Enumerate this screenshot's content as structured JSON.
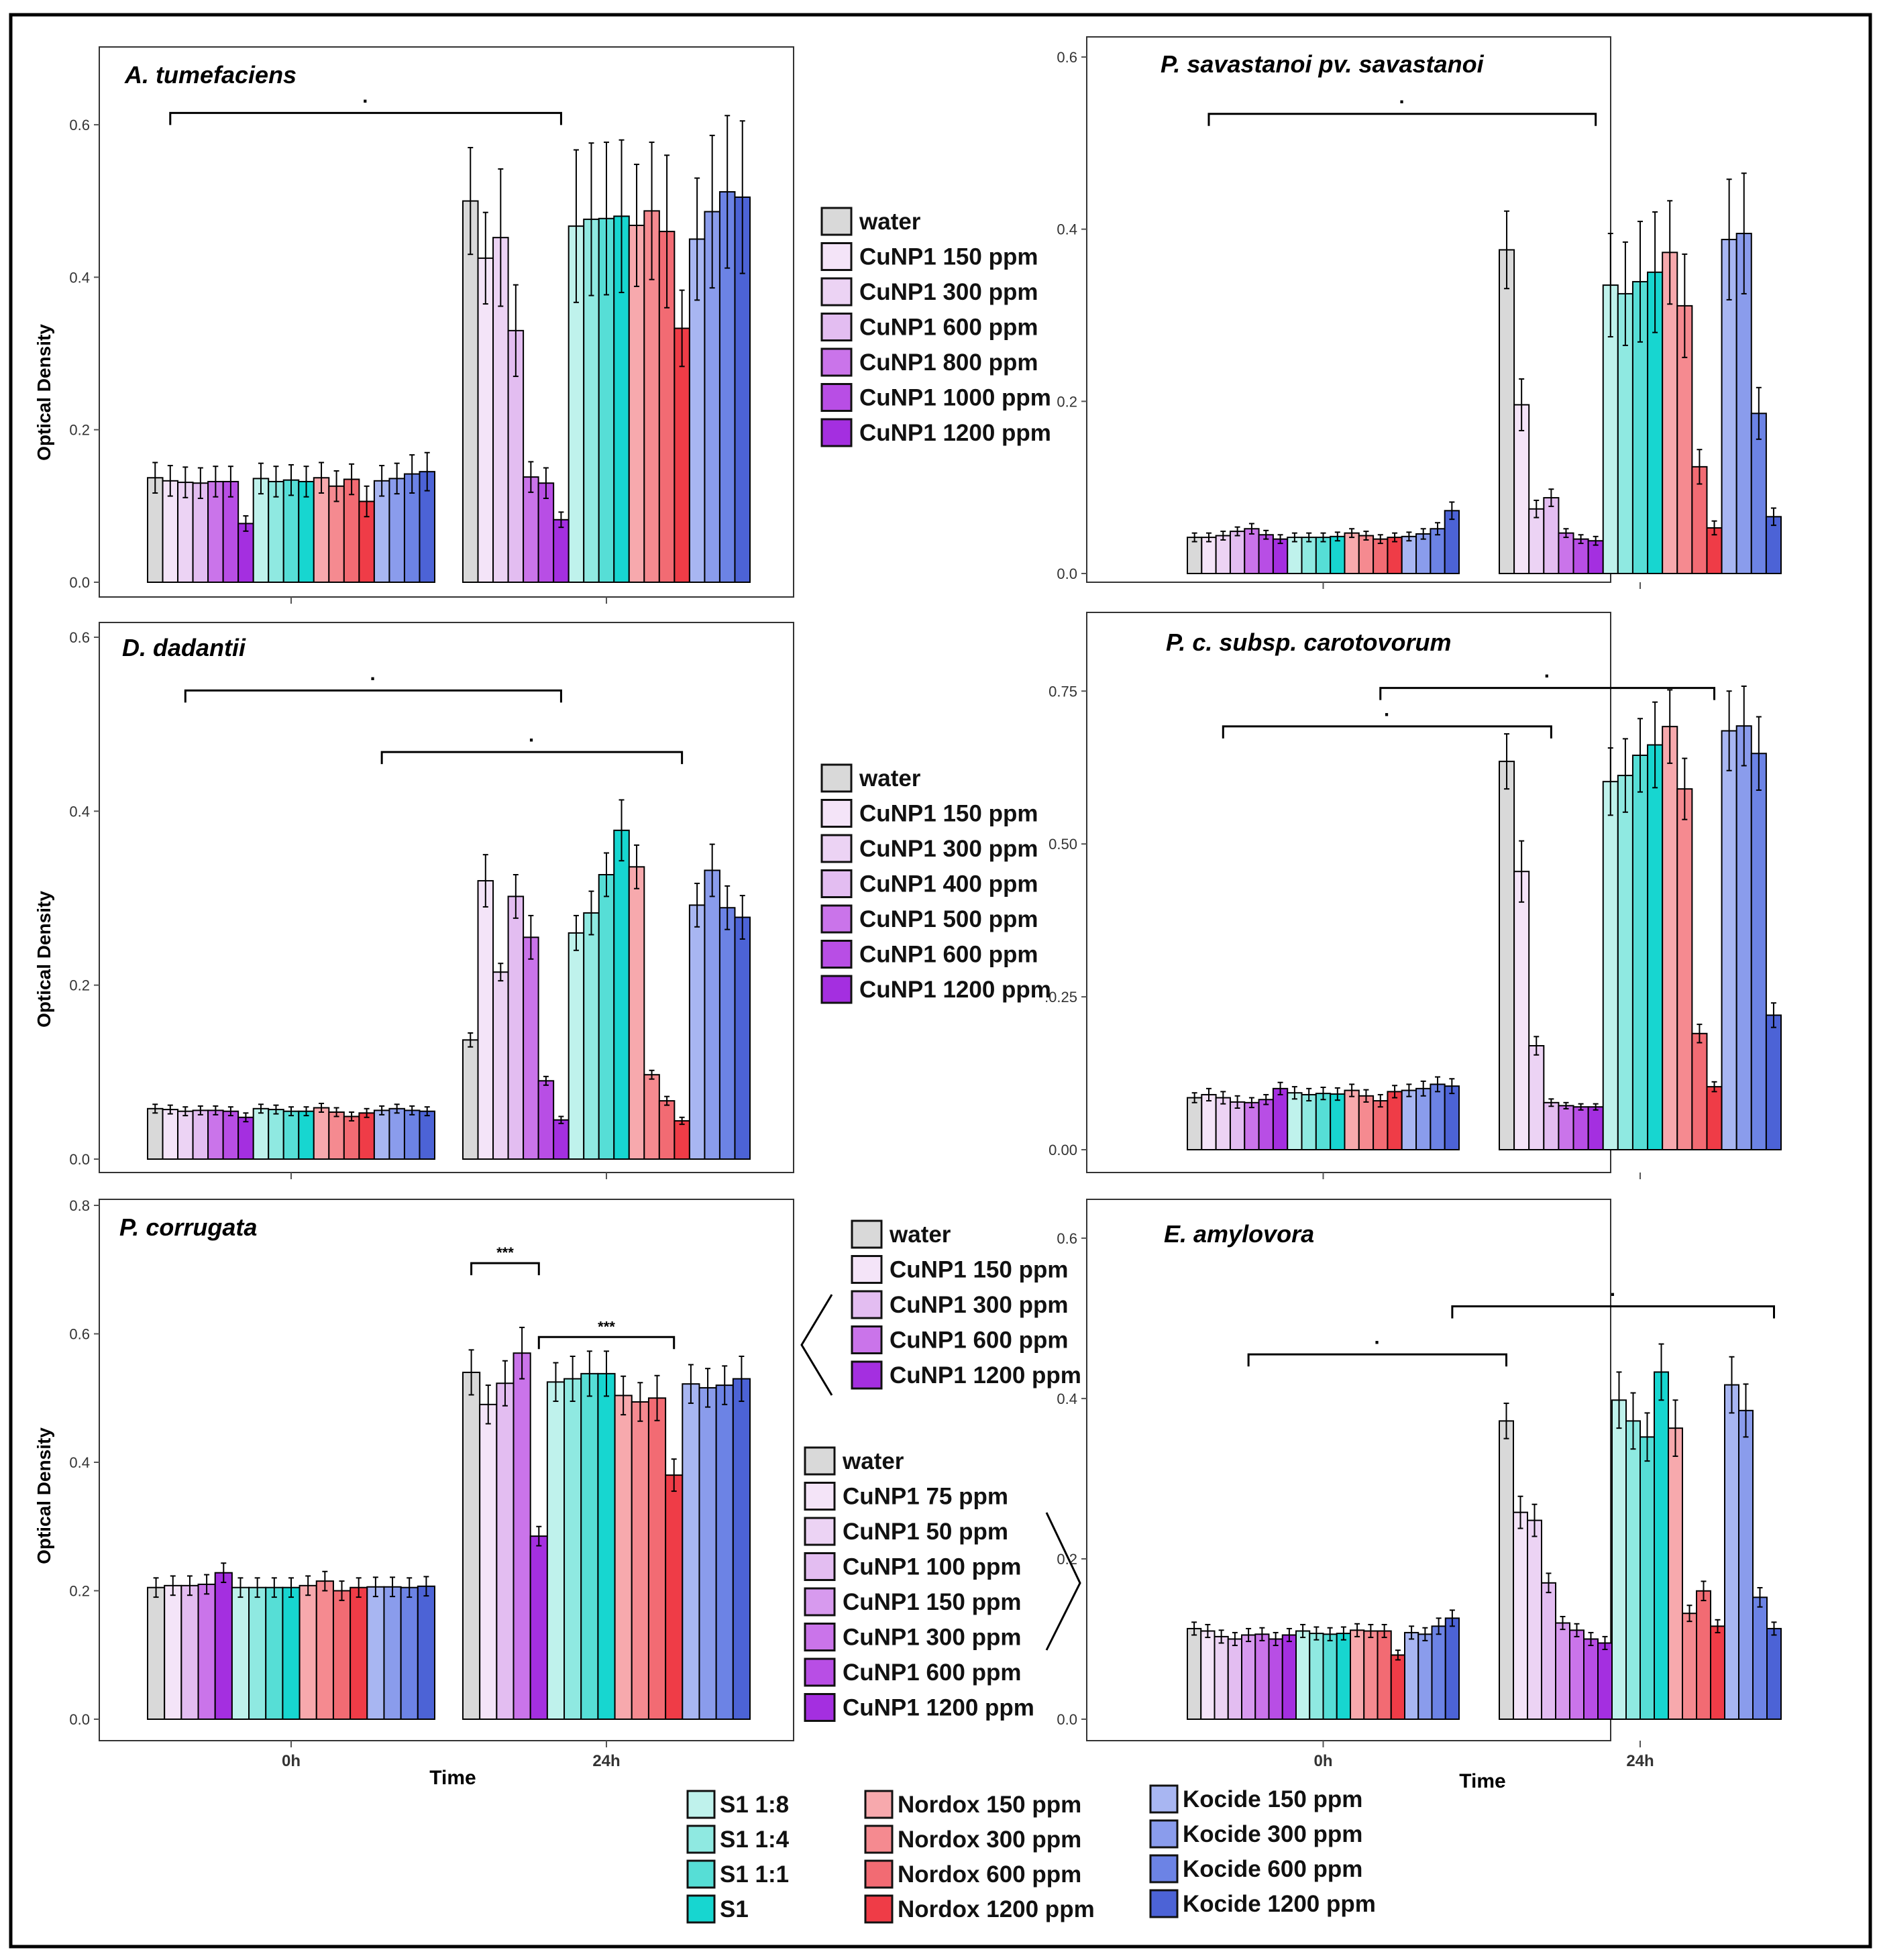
{
  "figure": {
    "time_label": "Time",
    "y_label": "Optical Density",
    "x_tick_labels": [
      "0h",
      "24h"
    ],
    "colors": {
      "water": "#d9d9d9",
      "cunp1": [
        "#f4e4f8",
        "#ecd3f4",
        "#e3bdf1",
        "#d79aee",
        "#ca74ea",
        "#b84ee5",
        "#a42fe0"
      ],
      "s1": [
        "#bff2ec",
        "#8fe9e1",
        "#56ded6",
        "#17d6d0"
      ],
      "nordox": [
        "#f7a9ad",
        "#f58a90",
        "#f26b73",
        "#ef3c47"
      ],
      "kocide": [
        "#a8b6f2",
        "#8a9cec",
        "#6c83e5",
        "#4c63d6"
      ]
    }
  },
  "chart_data": [
    {
      "type": "bar",
      "title": "A. tumefaciens",
      "xlabel": "",
      "ylabel": "Optical Density",
      "ylim": [
        0,
        0.68
      ],
      "yticks": [
        "0.0",
        "0.2",
        "0.4",
        "0.6"
      ],
      "categories": [
        "0h",
        "24h"
      ],
      "treatments": [
        "water",
        "CuNP1 150 ppm",
        "CuNP1 300 ppm",
        "CuNP1 600 ppm",
        "CuNP1 800 ppm",
        "CuNP1 1000 ppm",
        "CuNP1 1200 ppm",
        "S1 1:8",
        "S1 1:4",
        "S1 1:1",
        "S1",
        "Nordox 150 ppm",
        "Nordox 300 ppm",
        "Nordox 600 ppm",
        "Nordox 1200 ppm",
        "Kocide 150 ppm",
        "Kocide 300 ppm",
        "Kocide 600 ppm",
        "Kocide 1200 ppm"
      ],
      "values_0h": [
        0.137,
        0.133,
        0.131,
        0.13,
        0.132,
        0.132,
        0.077,
        0.136,
        0.132,
        0.134,
        0.132,
        0.137,
        0.126,
        0.135,
        0.106,
        0.133,
        0.136,
        0.142,
        0.145
      ],
      "errors_0h": [
        0.02,
        0.02,
        0.02,
        0.02,
        0.02,
        0.02,
        0.01,
        0.02,
        0.02,
        0.02,
        0.02,
        0.02,
        0.02,
        0.02,
        0.02,
        0.02,
        0.02,
        0.025,
        0.025
      ],
      "values_24h": [
        0.5,
        0.425,
        0.452,
        0.33,
        0.138,
        0.13,
        0.082,
        0.467,
        0.476,
        0.477,
        0.48,
        0.468,
        0.487,
        0.46,
        0.333,
        0.45,
        0.486,
        0.512,
        0.505
      ],
      "errors_24h": [
        0.07,
        0.06,
        0.09,
        0.06,
        0.02,
        0.02,
        0.01,
        0.1,
        0.1,
        0.1,
        0.1,
        0.08,
        0.09,
        0.1,
        0.05,
        0.08,
        0.1,
        0.1,
        0.1
      ],
      "annotations": [
        {
          "label": "·",
          "from": "0h CuNP1 150 ppm",
          "to": "24h CuNP1 1200 ppm"
        }
      ],
      "legend": {
        "text": [
          "water",
          "CuNP1 150 ppm",
          "CuNP1 300 ppm",
          "CuNP1 600 ppm",
          "CuNP1 800 ppm",
          "CuNP1 1000 ppm",
          "CuNP1 1200 ppm"
        ]
      }
    },
    {
      "type": "bar",
      "title": "P. savastanoi pv. savastanoi",
      "xlabel": "",
      "ylabel": "",
      "ylim": [
        0,
        0.6
      ],
      "yticks": [
        "0.0",
        "0.2",
        "0.4",
        "0.6"
      ],
      "categories": [
        "0h",
        "24h"
      ],
      "treatments": [
        "water",
        "CuNP1 150 ppm",
        "CuNP1 300 ppm",
        "CuNP1 600 ppm",
        "CuNP1 800 ppm",
        "CuNP1 1000 ppm",
        "CuNP1 1200 ppm",
        "S1 1:8",
        "S1 1:4",
        "S1 1:1",
        "S1",
        "Nordox 150 ppm",
        "Nordox 300 ppm",
        "Nordox 600 ppm",
        "Nordox 1200 ppm",
        "Kocide 150 ppm",
        "Kocide 300 ppm",
        "Kocide 600 ppm",
        "Kocide 1200 ppm"
      ],
      "values_0h": [
        0.042,
        0.042,
        0.044,
        0.049,
        0.052,
        0.045,
        0.04,
        0.042,
        0.042,
        0.042,
        0.043,
        0.047,
        0.044,
        0.04,
        0.042,
        0.043,
        0.046,
        0.052,
        0.073
      ],
      "errors_0h": [
        0.005,
        0.005,
        0.005,
        0.005,
        0.006,
        0.005,
        0.005,
        0.005,
        0.005,
        0.005,
        0.005,
        0.005,
        0.005,
        0.005,
        0.005,
        0.005,
        0.006,
        0.007,
        0.01
      ],
      "values_24h": [
        0.376,
        0.196,
        0.075,
        0.088,
        0.047,
        0.04,
        0.038,
        0.335,
        0.325,
        0.339,
        0.35,
        0.373,
        0.311,
        0.124,
        0.053,
        0.388,
        0.395,
        0.186,
        0.066
      ],
      "errors_24h": [
        0.045,
        0.03,
        0.01,
        0.01,
        0.005,
        0.005,
        0.005,
        0.06,
        0.06,
        0.07,
        0.07,
        0.06,
        0.06,
        0.02,
        0.008,
        0.07,
        0.07,
        0.03,
        0.01
      ],
      "annotations": [
        {
          "label": "·",
          "from": "0h CuNP1 150 ppm",
          "to": "24h CuNP1 1200 ppm"
        }
      ]
    },
    {
      "type": "bar",
      "title": "D. dadantii",
      "xlabel": "",
      "ylabel": "Optical Density",
      "ylim": [
        0,
        0.6
      ],
      "yticks": [
        "0.0",
        "0.2",
        "0.4",
        "0.6"
      ],
      "categories": [
        "0h",
        "24h"
      ],
      "treatments": [
        "water",
        "CuNP1 150 ppm",
        "CuNP1 300 ppm",
        "CuNP1 400 ppm",
        "CuNP1 500 ppm",
        "CuNP1 600 ppm",
        "CuNP1 1200 ppm",
        "S1 1:8",
        "S1 1:4",
        "S1 1:1",
        "S1",
        "Nordox 150 ppm",
        "Nordox 300 ppm",
        "Nordox 600 ppm",
        "Nordox 1200 ppm",
        "Kocide 150 ppm",
        "Kocide 300 ppm",
        "Kocide 600 ppm",
        "Kocide 1200 ppm"
      ],
      "values_0h": [
        0.058,
        0.057,
        0.055,
        0.056,
        0.056,
        0.055,
        0.048,
        0.058,
        0.057,
        0.055,
        0.055,
        0.059,
        0.054,
        0.049,
        0.053,
        0.056,
        0.058,
        0.056,
        0.055
      ],
      "errors_0h": [
        0.005,
        0.005,
        0.005,
        0.005,
        0.005,
        0.005,
        0.005,
        0.005,
        0.005,
        0.005,
        0.005,
        0.005,
        0.005,
        0.005,
        0.005,
        0.005,
        0.005,
        0.005,
        0.005
      ],
      "values_24h": [
        0.137,
        0.32,
        0.215,
        0.302,
        0.255,
        0.09,
        0.045,
        0.26,
        0.283,
        0.327,
        0.378,
        0.336,
        0.097,
        0.067,
        0.044,
        0.292,
        0.332,
        0.289,
        0.278
      ],
      "errors_24h": [
        0.008,
        0.03,
        0.01,
        0.025,
        0.025,
        0.005,
        0.004,
        0.02,
        0.025,
        0.025,
        0.035,
        0.025,
        0.005,
        0.005,
        0.004,
        0.025,
        0.03,
        0.025,
        0.025
      ],
      "annotations": [
        {
          "label": "·",
          "from": "0h CuNP1 300 ppm",
          "to": "24h CuNP1 1200 ppm"
        },
        {
          "label": "·",
          "from": "0h Kocide 150 ppm",
          "to": "24h Nordox 1200 ppm"
        }
      ],
      "legend": {
        "text": [
          "water",
          "CuNP1 150 ppm",
          "CuNP1 300 ppm",
          "CuNP1 400 ppm",
          "CuNP1 500 ppm",
          "CuNP1 600 ppm",
          "CuNP1 1200 ppm"
        ]
      }
    },
    {
      "type": "bar",
      "title": "P. c. subsp. carotovorum",
      "xlabel": "",
      "ylabel": "",
      "ylim": [
        0,
        0.86
      ],
      "yticks": [
        "0.00",
        ".0.25",
        "0.50",
        "0.75"
      ],
      "categories": [
        "0h",
        "24h"
      ],
      "treatments": [
        "water",
        "CuNP1 150 ppm",
        "CuNP1 300 ppm",
        "CuNP1 600 ppm",
        "CuNP1 800 ppm",
        "CuNP1 1000 ppm",
        "CuNP1 1200 ppm",
        "S1 1:8",
        "S1 1:4",
        "S1 1:1",
        "S1",
        "Nordox 150 ppm",
        "Nordox 300 ppm",
        "Nordox 600 ppm",
        "Nordox 1200 ppm",
        "Kocide 150 ppm",
        "Kocide 300 ppm",
        "Kocide 600 ppm",
        "Kocide 1200 ppm"
      ],
      "values_0h": [
        0.085,
        0.09,
        0.085,
        0.078,
        0.077,
        0.082,
        0.1,
        0.093,
        0.09,
        0.092,
        0.091,
        0.097,
        0.088,
        0.08,
        0.095,
        0.097,
        0.1,
        0.107,
        0.104
      ],
      "errors_0h": [
        0.008,
        0.01,
        0.01,
        0.01,
        0.008,
        0.008,
        0.01,
        0.01,
        0.01,
        0.01,
        0.01,
        0.01,
        0.01,
        0.01,
        0.01,
        0.01,
        0.012,
        0.012,
        0.012
      ],
      "values_24h": [
        0.635,
        0.455,
        0.17,
        0.077,
        0.072,
        0.07,
        0.07,
        0.602,
        0.612,
        0.645,
        0.662,
        0.692,
        0.59,
        0.19,
        0.103,
        0.685,
        0.693,
        0.648,
        0.22
      ],
      "errors_24h": [
        0.045,
        0.05,
        0.015,
        0.006,
        0.005,
        0.005,
        0.005,
        0.055,
        0.06,
        0.06,
        0.07,
        0.06,
        0.05,
        0.015,
        0.008,
        0.065,
        0.065,
        0.06,
        0.02
      ],
      "annotations": [
        {
          "label": "·",
          "from": "0h CuNP1 300 ppm",
          "to": "24h CuNP1 600 ppm"
        },
        {
          "label": "·",
          "from": "0h Nordox 600 ppm",
          "to": "24h Nordox 1200 ppm"
        }
      ]
    },
    {
      "type": "bar",
      "title": "P. corrugata",
      "xlabel": "",
      "ylabel": "Optical Density",
      "ylim": [
        0,
        0.8
      ],
      "yticks": [
        "0.0",
        "0.2",
        "0.4",
        "0.6",
        "0.8"
      ],
      "categories": [
        "0h",
        "24h"
      ],
      "treatments": [
        "water",
        "CuNP1 150 ppm",
        "CuNP1 300 ppm",
        "CuNP1 600 ppm",
        "CuNP1 1200 ppm",
        "S1 1:8",
        "S1 1:4",
        "S1 1:1",
        "S1",
        "Nordox 150 ppm",
        "Nordox 300 ppm",
        "Nordox 600 ppm",
        "Nordox 1200 ppm",
        "Kocide 150 ppm",
        "Kocide 300 ppm",
        "Kocide 600 ppm",
        "Kocide 1200 ppm"
      ],
      "values_0h": [
        0.205,
        0.208,
        0.208,
        0.21,
        0.228,
        0.205,
        0.205,
        0.205,
        0.205,
        0.208,
        0.215,
        0.2,
        0.205,
        0.206,
        0.206,
        0.205,
        0.207
      ],
      "errors_0h": [
        0.015,
        0.015,
        0.015,
        0.015,
        0.015,
        0.015,
        0.015,
        0.015,
        0.015,
        0.015,
        0.015,
        0.015,
        0.015,
        0.015,
        0.015,
        0.015,
        0.015
      ],
      "values_24h": [
        0.54,
        0.49,
        0.523,
        0.57,
        0.285,
        0.525,
        0.53,
        0.538,
        0.538,
        0.504,
        0.494,
        0.5,
        0.38,
        0.522,
        0.516,
        0.52,
        0.53
      ],
      "errors_24h": [
        0.035,
        0.03,
        0.035,
        0.04,
        0.015,
        0.03,
        0.035,
        0.035,
        0.035,
        0.03,
        0.03,
        0.035,
        0.025,
        0.03,
        0.03,
        0.03,
        0.035
      ],
      "annotations": [
        {
          "label": "***",
          "from": "24h water",
          "to": "24h CuNP1 1200 ppm"
        },
        {
          "label": "***",
          "from": "24h CuNP1 1200 ppm",
          "to": "24h Nordox 1200 ppm"
        }
      ],
      "legend": {
        "text": [
          "water",
          "CuNP1 150 ppm",
          "CuNP1 300 ppm",
          "CuNP1 600 ppm",
          "CuNP1 1200 ppm"
        ]
      }
    },
    {
      "type": "bar",
      "title": "E. amylovora",
      "xlabel": "",
      "ylabel": "",
      "ylim": [
        0,
        0.63
      ],
      "yticks": [
        "0.0",
        "0.2",
        "0.4",
        "0.6"
      ],
      "categories": [
        "0h",
        "24h"
      ],
      "treatments": [
        "water",
        "CuNP1 75 ppm",
        "CuNP1 50 ppm",
        "CuNP1 100 ppm",
        "CuNP1 150 ppm",
        "CuNP1 300 ppm",
        "CuNP1 600 ppm",
        "CuNP1 1200 ppm",
        "S1 1:8",
        "S1 1:4",
        "S1 1:1",
        "S1",
        "Nordox 150 ppm",
        "Nordox 300 ppm",
        "Nordox 600 ppm",
        "Nordox 1200 ppm",
        "Kocide 150 ppm",
        "Kocide 300 ppm",
        "Kocide 600 ppm",
        "Kocide 1200 ppm"
      ],
      "values_0h": [
        0.113,
        0.11,
        0.103,
        0.1,
        0.105,
        0.106,
        0.1,
        0.105,
        0.11,
        0.107,
        0.106,
        0.107,
        0.111,
        0.11,
        0.11,
        0.08,
        0.108,
        0.106,
        0.116,
        0.126
      ],
      "errors_0h": [
        0.008,
        0.008,
        0.008,
        0.008,
        0.008,
        0.008,
        0.008,
        0.008,
        0.008,
        0.008,
        0.008,
        0.008,
        0.008,
        0.008,
        0.008,
        0.006,
        0.008,
        0.008,
        0.01,
        0.01
      ],
      "values_24h": [
        0.372,
        0.258,
        0.248,
        0.17,
        0.12,
        0.111,
        0.1,
        0.095,
        0.398,
        0.372,
        0.352,
        0.433,
        0.363,
        0.132,
        0.16,
        0.116,
        0.417,
        0.385,
        0.152,
        0.113
      ],
      "errors_24h": [
        0.022,
        0.02,
        0.02,
        0.012,
        0.008,
        0.008,
        0.008,
        0.008,
        0.035,
        0.035,
        0.03,
        0.035,
        0.035,
        0.01,
        0.012,
        0.008,
        0.035,
        0.033,
        0.012,
        0.008
      ],
      "annotations": [
        {
          "label": "·",
          "from": "0h CuNP1 150 ppm",
          "to": "24h water"
        },
        {
          "label": "·",
          "from": "0h Kocide 1200 ppm",
          "to": "24h Kocide 1200 ppm"
        }
      ],
      "legend": {
        "text": [
          "water",
          "CuNP1 75 ppm",
          "CuNP1 50 ppm",
          "CuNP1 100 ppm",
          "CuNP1 150 ppm",
          "CuNP1 300 ppm",
          "CuNP1 600 ppm",
          "CuNP1 1200 ppm"
        ]
      }
    }
  ],
  "shared_legend": {
    "s1": [
      "S1 1:8",
      "S1 1:4",
      "S1 1:1",
      "S1"
    ],
    "nordox": [
      "Nordox 150 ppm",
      "Nordox 300 ppm",
      "Nordox 600 ppm",
      "Nordox 1200 ppm"
    ],
    "kocide": [
      "Kocide 150 ppm",
      "Kocide 300 ppm",
      "Kocide 600 ppm",
      "Kocide 1200 ppm"
    ]
  }
}
